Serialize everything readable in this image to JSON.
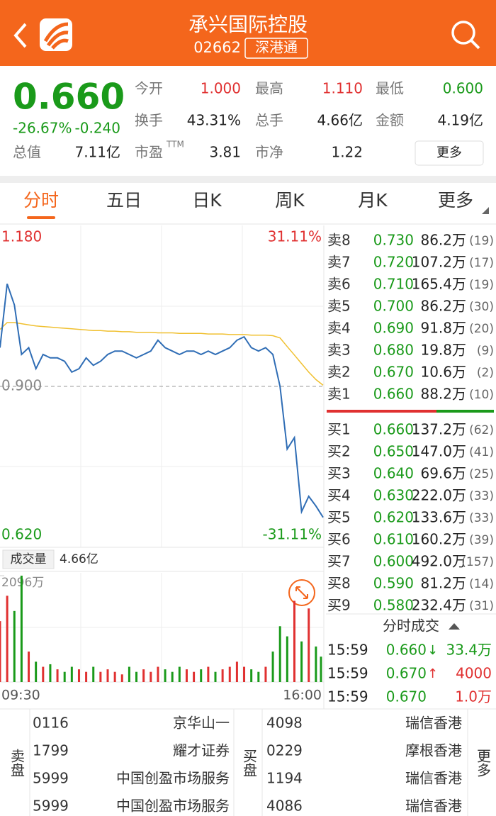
{
  "header": {
    "title": "承兴国际控股",
    "code": "02662",
    "tag": "深港通"
  },
  "quote": {
    "price": "0.660",
    "change_pct": "-26.67%",
    "change": "-0.240",
    "rows": [
      [
        {
          "label": "今开",
          "value": "1.000",
          "color": "#e03030"
        },
        {
          "label": "最高",
          "value": "1.110",
          "color": "#e03030"
        },
        {
          "label": "最低",
          "value": "0.600",
          "color": "#1a9a1a"
        }
      ],
      [
        {
          "label": "换手",
          "value": "43.31%",
          "color": "#222222"
        },
        {
          "label": "总手",
          "value": "4.66亿",
          "color": "#222222"
        },
        {
          "label": "金额",
          "value": "4.19亿",
          "color": "#222222"
        }
      ]
    ],
    "total_value": {
      "label": "总值",
      "value": "7.11亿"
    },
    "pe": {
      "label": "市盈",
      "sup": "TTM",
      "value": "3.81"
    },
    "pb": {
      "label": "市净",
      "value": "1.22"
    },
    "more": "更多"
  },
  "tabs": {
    "items": [
      "分时",
      "五日",
      "日K",
      "周K",
      "月K",
      "更多"
    ],
    "active": 0
  },
  "chart": {
    "type": "line",
    "price": [
      0.968,
      1.08,
      1.043,
      0.956,
      0.968,
      0.931,
      0.956,
      0.95,
      0.95,
      0.944,
      0.925,
      0.931,
      0.95,
      0.937,
      0.944,
      0.956,
      0.962,
      0.962,
      0.956,
      0.95,
      0.956,
      0.962,
      0.981,
      0.968,
      0.962,
      0.956,
      0.962,
      0.962,
      0.956,
      0.962,
      0.956,
      0.962,
      0.968,
      0.981,
      0.987,
      0.968,
      0.962,
      0.968,
      0.956,
      0.9,
      0.79,
      0.81,
      0.68,
      0.707,
      0.69,
      0.67
    ],
    "avg": [
      1.0,
      1.012,
      1.012,
      1.01,
      1.008,
      1.006,
      1.005,
      1.004,
      1.003,
      1.002,
      1.001,
      1.0,
      0.999,
      0.998,
      0.998,
      0.997,
      0.997,
      0.996,
      0.996,
      0.995,
      0.995,
      0.995,
      0.994,
      0.994,
      0.994,
      0.993,
      0.993,
      0.993,
      0.993,
      0.992,
      0.992,
      0.992,
      0.991,
      0.991,
      0.991,
      0.99,
      0.99,
      0.99,
      0.989,
      0.985,
      0.97,
      0.955,
      0.94,
      0.925,
      0.912,
      0.902
    ],
    "ylim": [
      0.62,
      1.18
    ],
    "yticks": [
      {
        "value": 1.18,
        "label": "1.180"
      },
      {
        "value": 0.9,
        "label": "0.900"
      },
      {
        "value": 0.62,
        "label": "0.620"
      }
    ],
    "pct_labels": [
      "31.11%",
      "-31.11%"
    ],
    "price_color": "#2f6db5",
    "avg_color": "#f0c030",
    "x_labels": [
      "09:30",
      "16:00"
    ]
  },
  "volume": {
    "label": "成交量",
    "total": "4.66亿",
    "values": [
      1200,
      1700,
      1400,
      2096,
      600,
      400,
      300,
      350,
      250,
      200,
      300,
      250,
      200,
      300,
      200,
      250,
      200,
      150,
      300,
      200,
      250,
      200,
      300,
      250,
      200,
      300,
      250,
      200,
      250,
      300,
      200,
      250,
      300,
      400,
      300,
      250,
      200,
      300,
      600,
      1100,
      900,
      1600,
      800,
      1450,
      700,
      500
    ],
    "ylim": [
      0,
      2096
    ],
    "yticks": [
      {
        "value": 2096,
        "label": "2096万"
      }
    ],
    "up_color": "#e03030",
    "down_color": "#1a9a1a"
  },
  "order_book": {
    "asks": [
      [
        "卖8",
        "0.730",
        "86.2万",
        "(19)"
      ],
      [
        "卖7",
        "0.720",
        "107.2万",
        "(17)"
      ],
      [
        "卖6",
        "0.710",
        "165.4万",
        "(19)"
      ],
      [
        "卖5",
        "0.700",
        "86.2万",
        "(30)"
      ],
      [
        "卖4",
        "0.690",
        "91.8万",
        "(20)"
      ],
      [
        "卖3",
        "0.680",
        "19.8万",
        "(9)"
      ],
      [
        "卖2",
        "0.670",
        "10.6万",
        "(2)"
      ],
      [
        "卖1",
        "0.660",
        "88.2万",
        "(10)"
      ]
    ],
    "bids": [
      [
        "买1",
        "0.660",
        "137.2万",
        "(62)"
      ],
      [
        "买2",
        "0.650",
        "147.0万",
        "(41)"
      ],
      [
        "买3",
        "0.640",
        "69.6万",
        "(25)"
      ],
      [
        "买4",
        "0.630",
        "222.0万",
        "(33)"
      ],
      [
        "买5",
        "0.620",
        "133.6万",
        "(33)"
      ],
      [
        "买6",
        "0.610",
        "160.2万",
        "(39)"
      ],
      [
        "买7",
        "0.600",
        "492.0万",
        "(157)"
      ],
      [
        "买8",
        "0.590",
        "81.2万",
        "(14)"
      ],
      [
        "买9",
        "0.580",
        "232.4万",
        "(31)"
      ]
    ]
  },
  "trades": {
    "title": "分时成交",
    "rows": [
      {
        "time": "15:59",
        "price": "0.660",
        "arrow": "↓",
        "volume": "33.4万",
        "color": "#1a9a1a"
      },
      {
        "time": "15:59",
        "price": "0.670",
        "arrow": "↑",
        "volume": "4000",
        "color": "#e03030"
      },
      {
        "time": "15:59",
        "price": "0.670",
        "volume": "1.0万",
        "color": "#e03030"
      }
    ]
  },
  "brokers": {
    "sell_label": "卖盘",
    "buy_label": "买盘",
    "more": "更多",
    "sell": [
      [
        "0116",
        "京华山一"
      ],
      [
        "1799",
        "耀才证券"
      ],
      [
        "5999",
        "中国创盈市场服务"
      ],
      [
        "5999",
        "中国创盈市场服务"
      ]
    ],
    "buy": [
      [
        "4098",
        "瑞信香港"
      ],
      [
        "0229",
        "摩根香港"
      ],
      [
        "1194",
        "瑞信香港"
      ],
      [
        "4086",
        "瑞信香港"
      ]
    ]
  }
}
